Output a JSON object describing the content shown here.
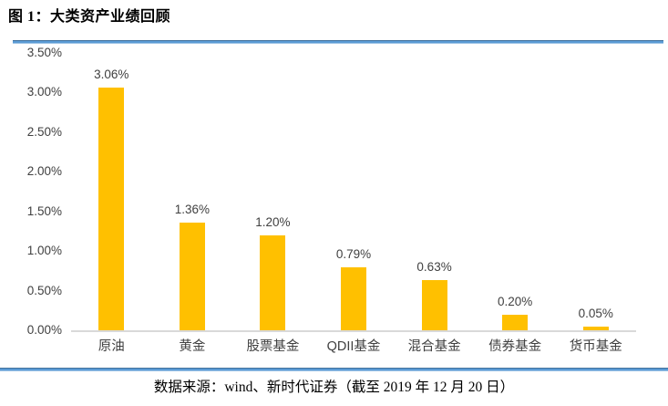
{
  "figure": {
    "title": "图 1：大类资产业绩回顾",
    "source": "数据来源：wind、新时代证券（截至 2019 年 12 月 20 日）"
  },
  "chart_data": {
    "type": "bar",
    "title": "图 1：大类资产业绩回顾",
    "categories": [
      "原油",
      "黄金",
      "股票基金",
      "QDII基金",
      "混合基金",
      "债券基金",
      "货币基金"
    ],
    "values": [
      3.06,
      1.36,
      1.2,
      0.79,
      0.63,
      0.2,
      0.05
    ],
    "value_labels": [
      "3.06%",
      "1.36%",
      "1.20%",
      "0.79%",
      "0.63%",
      "0.20%",
      "0.05%"
    ],
    "xlabel": "",
    "ylabel": "",
    "ylim": [
      0,
      3.5
    ],
    "ytick_labels_top_to_bottom": [
      "3.50%",
      "3.00%",
      "2.50%",
      "2.00%",
      "1.50%",
      "1.00%",
      "0.50%",
      "0.00%"
    ],
    "grid": false,
    "legend": false,
    "bar_color": "#FFC000",
    "axis_line_color": "#D9D9D9",
    "label_color": "#404040",
    "rule_color": "#5B9BD5"
  }
}
